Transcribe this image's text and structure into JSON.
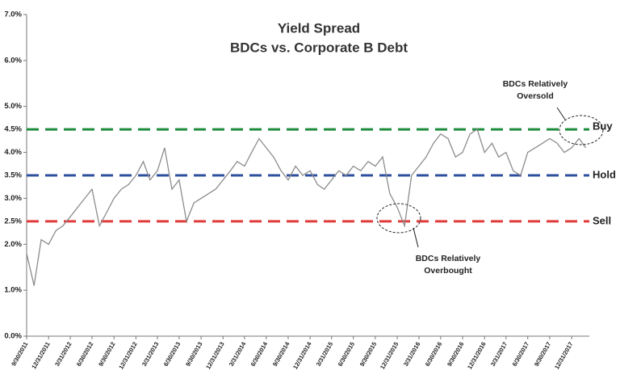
{
  "chart_data": {
    "type": "line",
    "title": "Yield Spread",
    "subtitle": "BDCs vs. Corporate B Debt",
    "x": [
      "9/30/2011",
      "10/31/2011",
      "11/30/2011",
      "12/31/2011",
      "1/31/2012",
      "2/29/2012",
      "3/31/2012",
      "4/30/2012",
      "5/31/2012",
      "6/30/2012",
      "7/31/2012",
      "8/31/2012",
      "9/30/2012",
      "10/31/2012",
      "11/30/2012",
      "12/31/2012",
      "1/31/2013",
      "2/28/2013",
      "3/31/2013",
      "4/30/2013",
      "5/31/2013",
      "6/30/2013",
      "7/31/2013",
      "8/31/2013",
      "9/30/2013",
      "10/31/2013",
      "11/30/2013",
      "12/31/2013",
      "1/31/2014",
      "2/28/2014",
      "3/31/2014",
      "4/30/2014",
      "5/31/2014",
      "6/30/2014",
      "7/31/2014",
      "8/31/2014",
      "9/30/2014",
      "10/31/2014",
      "11/30/2014",
      "12/31/2014",
      "1/31/2015",
      "2/28/2015",
      "3/31/2015",
      "4/30/2015",
      "5/31/2015",
      "6/30/2015",
      "7/31/2015",
      "8/31/2015",
      "9/30/2015",
      "10/31/2015",
      "11/30/2015",
      "12/31/2015",
      "1/31/2016",
      "2/29/2016",
      "3/31/2016",
      "4/30/2016",
      "5/31/2016",
      "6/30/2016",
      "7/31/2016",
      "8/31/2016",
      "9/30/2016",
      "10/31/2016",
      "11/30/2016",
      "12/31/2016",
      "1/31/2017",
      "2/28/2017",
      "3/31/2017",
      "4/30/2017",
      "5/31/2017",
      "6/30/2017",
      "7/31/2017",
      "8/31/2017",
      "9/30/2017",
      "10/31/2017",
      "11/30/2017",
      "12/31/2017",
      "1/31/2018",
      "2/28/2018"
    ],
    "series": [
      {
        "name": "Yield Spread",
        "color": "#8c8c8c",
        "values": [
          1.8,
          1.1,
          2.1,
          2.0,
          2.3,
          2.4,
          2.6,
          2.8,
          3.0,
          3.2,
          2.4,
          2.7,
          3.0,
          3.2,
          3.3,
          3.5,
          3.8,
          3.4,
          3.6,
          4.1,
          3.2,
          3.4,
          2.5,
          2.9,
          3.0,
          3.1,
          3.2,
          3.4,
          3.6,
          3.8,
          3.7,
          4.0,
          4.3,
          4.1,
          3.9,
          3.6,
          3.4,
          3.7,
          3.5,
          3.6,
          3.3,
          3.2,
          3.4,
          3.6,
          3.5,
          3.7,
          3.6,
          3.8,
          3.7,
          3.9,
          3.1,
          2.8,
          2.4,
          3.5,
          3.7,
          3.9,
          4.2,
          4.4,
          4.3,
          3.9,
          4.0,
          4.4,
          4.5,
          4.0,
          4.2,
          3.9,
          4.0,
          3.6,
          3.5,
          4.0,
          4.1,
          4.2,
          4.3,
          4.2,
          4.0,
          4.1,
          4.3,
          4.1
        ]
      }
    ],
    "xlim": [
      "9/30/2011",
      "3/15/2018"
    ],
    "xticks": [
      "9/30/2011",
      "12/31/2011",
      "3/31/2012",
      "6/30/2012",
      "9/30/2012",
      "12/31/2012",
      "3/31/2013",
      "6/30/2013",
      "9/30/2013",
      "12/31/2013",
      "3/31/2014",
      "6/30/2014",
      "9/30/2014",
      "12/31/2014",
      "3/31/2015",
      "6/30/2015",
      "9/30/2015",
      "12/31/2015",
      "3/31/2016",
      "6/30/2016",
      "9/30/2016",
      "12/31/2016",
      "3/31/2017",
      "6/30/2017",
      "9/30/2017",
      "12/31/2017"
    ],
    "ylim": [
      0,
      7
    ],
    "yticks": [
      {
        "value": 0,
        "label": "0.0%"
      },
      {
        "value": 1,
        "label": "1.0%"
      },
      {
        "value": 2,
        "label": "2.0%"
      },
      {
        "value": 3,
        "label": "3.0%"
      },
      {
        "value": 4,
        "label": "4.0%"
      },
      {
        "value": 5,
        "label": "5.0%"
      },
      {
        "value": 6,
        "label": "6.0%"
      },
      {
        "value": 7,
        "label": "7.0%"
      }
    ],
    "reference_lines": [
      {
        "value": 4.5,
        "label": "4.5%",
        "name": "Buy",
        "color": "#1e8c3c"
      },
      {
        "value": 3.5,
        "label": "3.5%",
        "name": "Hold",
        "color": "#2e4f9e"
      },
      {
        "value": 2.5,
        "label": "2.5%",
        "name": "Sell",
        "color": "#e03a3a"
      }
    ],
    "annotations": [
      {
        "lines": [
          "BDCs Relatively",
          "Oversold"
        ],
        "color": "#1e8c3c"
      },
      {
        "lines": [
          "BDCs Relatively",
          "Overbought"
        ],
        "color": "#e03a3a"
      }
    ]
  }
}
